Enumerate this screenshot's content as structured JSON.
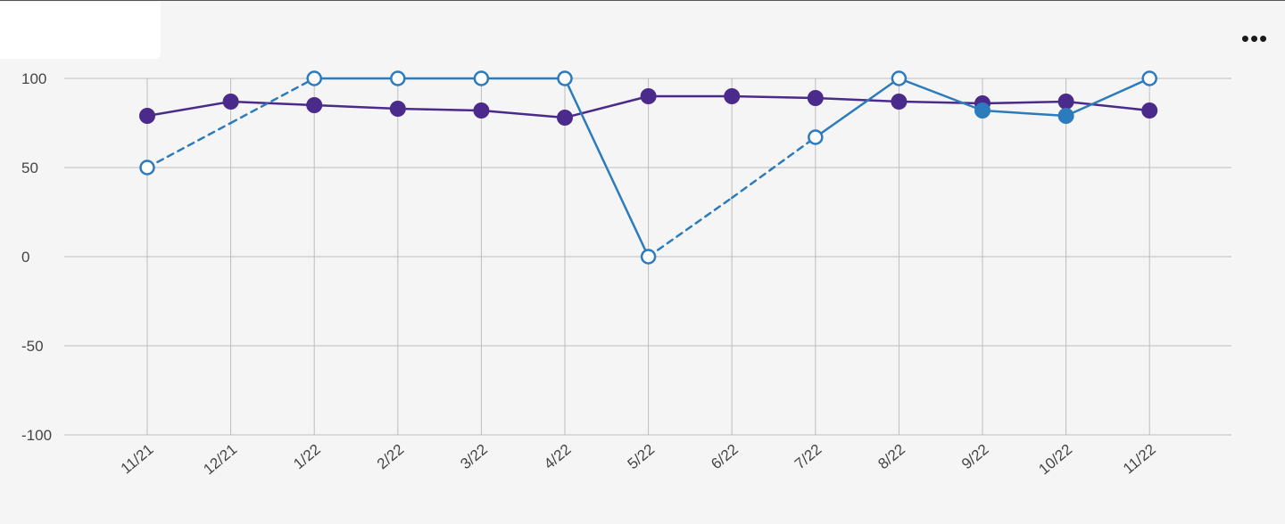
{
  "menu": {
    "more_label": "•••",
    "more_icon": "more-horizontal-icon"
  },
  "chart_data": {
    "type": "line",
    "title": "",
    "xlabel": "",
    "ylabel": "",
    "categories": [
      "11/21",
      "12/21",
      "1/22",
      "2/22",
      "3/22",
      "4/22",
      "5/22",
      "6/22",
      "7/22",
      "8/22",
      "9/22",
      "10/22",
      "11/22"
    ],
    "y_ticks": [
      "100",
      "50",
      "0",
      "-50",
      "-100"
    ],
    "ylim": [
      -100,
      100
    ],
    "grid": true,
    "legend": "none",
    "series": [
      {
        "color": "#4a2a8a",
        "marker": "filled",
        "values": [
          79,
          87,
          85,
          83,
          82,
          78,
          90,
          90,
          89,
          87,
          86,
          87,
          82
        ]
      },
      {
        "color": "#2b7bbd",
        "marker_styles": [
          "open",
          "none",
          "open",
          "open",
          "open",
          "open",
          "open",
          "none",
          "open",
          "open",
          "filled",
          "filled",
          "open"
        ],
        "segment_styles": [
          "dashed",
          "dashed",
          "solid",
          "solid",
          "solid",
          "solid",
          "dashed",
          "dashed",
          "solid",
          "solid",
          "solid",
          "solid"
        ],
        "values": [
          50,
          75,
          100,
          100,
          100,
          100,
          0,
          33,
          67,
          100,
          82,
          79,
          100
        ]
      }
    ]
  }
}
